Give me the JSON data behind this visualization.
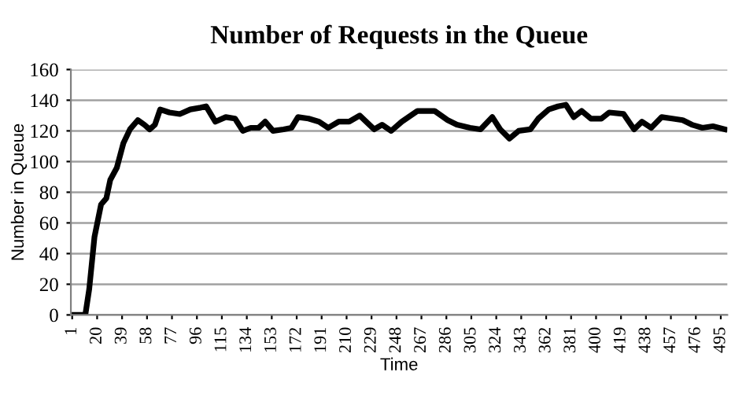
{
  "chart_data": {
    "type": "line",
    "title": "Number of Requests in the Queue",
    "xlabel": "Time",
    "ylabel": "Number in Queue",
    "x": [
      1,
      5,
      11,
      14,
      18,
      23,
      27,
      30,
      35,
      40,
      45,
      51,
      56,
      60,
      64,
      68,
      75,
      83,
      91,
      98,
      103,
      110,
      118,
      125,
      131,
      137,
      143,
      148,
      154,
      162,
      168,
      173,
      181,
      189,
      196,
      204,
      212,
      220,
      231,
      237,
      244,
      252,
      264,
      277,
      287,
      294,
      304,
      312,
      321,
      327,
      334,
      341,
      350,
      356,
      364,
      371,
      377,
      383,
      389,
      396,
      404,
      410,
      421,
      429,
      435,
      442,
      450,
      458,
      466,
      473,
      481,
      489,
      498
    ],
    "series": [
      {
        "color": "#000000",
        "values": [
          0,
          0,
          0,
          17,
          51,
          72,
          76,
          88,
          96,
          112,
          121,
          127,
          124,
          121,
          124,
          134,
          132,
          131,
          134,
          135,
          136,
          126,
          129,
          128,
          120,
          122,
          122,
          126,
          120,
          121,
          122,
          129,
          128,
          126,
          122,
          126,
          126,
          130,
          121,
          124,
          120,
          126,
          133,
          133,
          127,
          124,
          122,
          121,
          129,
          121,
          115,
          120,
          121,
          128,
          134,
          136,
          137,
          129,
          133,
          128,
          128,
          132,
          131,
          121,
          126,
          122,
          129,
          128,
          127,
          124,
          122,
          123,
          121
        ]
      }
    ],
    "xlim": [
      0,
      500
    ],
    "xticks": [
      1,
      20,
      39,
      58,
      77,
      96,
      115,
      134,
      153,
      172,
      191,
      210,
      229,
      248,
      267,
      286,
      305,
      324,
      343,
      362,
      381,
      400,
      419,
      438,
      457,
      476,
      495
    ],
    "ylim": [
      0,
      160
    ],
    "yticks": [
      0,
      20,
      40,
      60,
      80,
      100,
      120,
      140,
      160
    ],
    "grid": "y",
    "legend": false
  }
}
